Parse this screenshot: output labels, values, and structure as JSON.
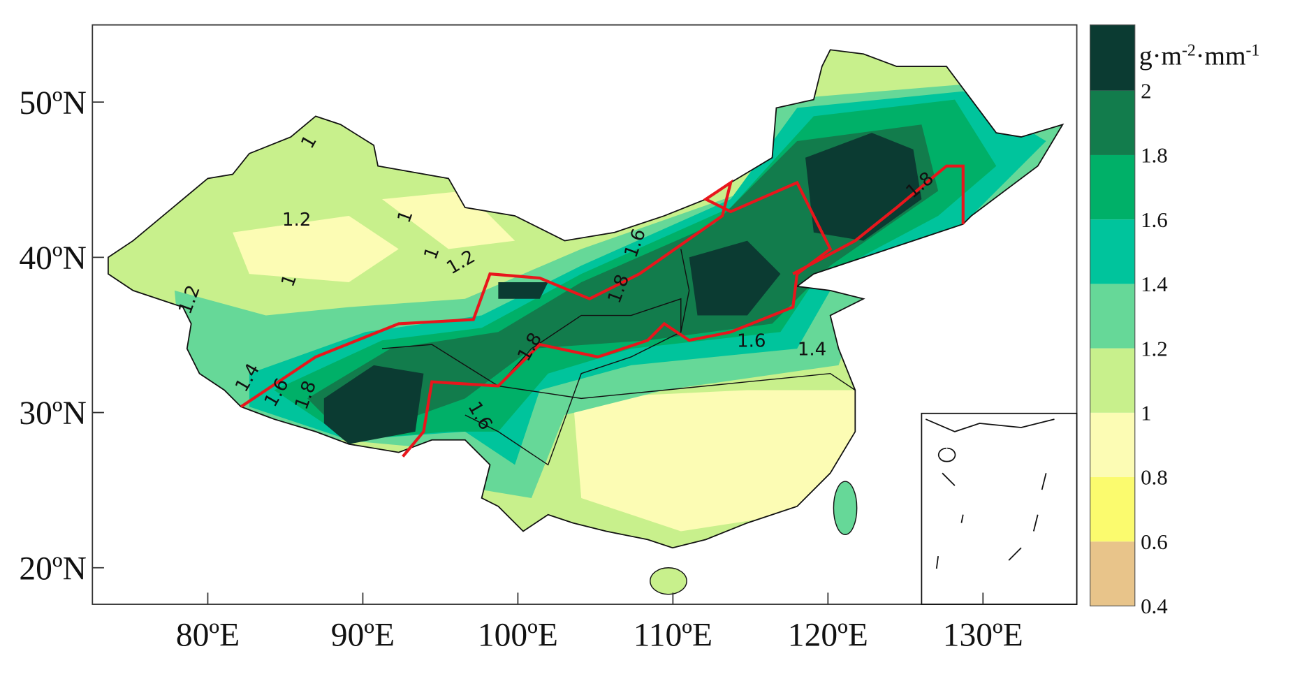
{
  "map": {
    "lat_ticks": [
      {
        "value": 50,
        "label": "50ºN"
      },
      {
        "value": 40,
        "label": "40ºN"
      },
      {
        "value": 30,
        "label": "30ºN"
      },
      {
        "value": 20,
        "label": "20ºN"
      }
    ],
    "lon_ticks": [
      {
        "value": 80,
        "label": "80ºE"
      },
      {
        "value": 90,
        "label": "90ºE"
      },
      {
        "value": 100,
        "label": "100ºE"
      },
      {
        "value": 110,
        "label": "110ºE"
      },
      {
        "value": 120,
        "label": "120ºE"
      },
      {
        "value": 130,
        "label": "130ºE"
      }
    ],
    "colorbar": {
      "unit_parts": [
        "g·m",
        "-2",
        "·mm",
        "-1"
      ],
      "levels": [
        0.4,
        0.6,
        0.8,
        1,
        1.2,
        1.4,
        1.6,
        1.8,
        2
      ],
      "colors": [
        "#e8c48a",
        "#fbfb6e",
        "#fcfcb4",
        "#c8f08c",
        "#66d898",
        "#00c49c",
        "#00b068",
        "#127c4c",
        "#0b3b32"
      ]
    },
    "contour_labels": [
      1,
      1.2,
      1,
      1,
      1.2,
      1,
      1.2,
      1.6,
      1.8,
      1.8,
      1.4,
      1.6,
      1.8,
      1.6,
      1.6,
      1.4,
      1.8
    ]
  }
}
